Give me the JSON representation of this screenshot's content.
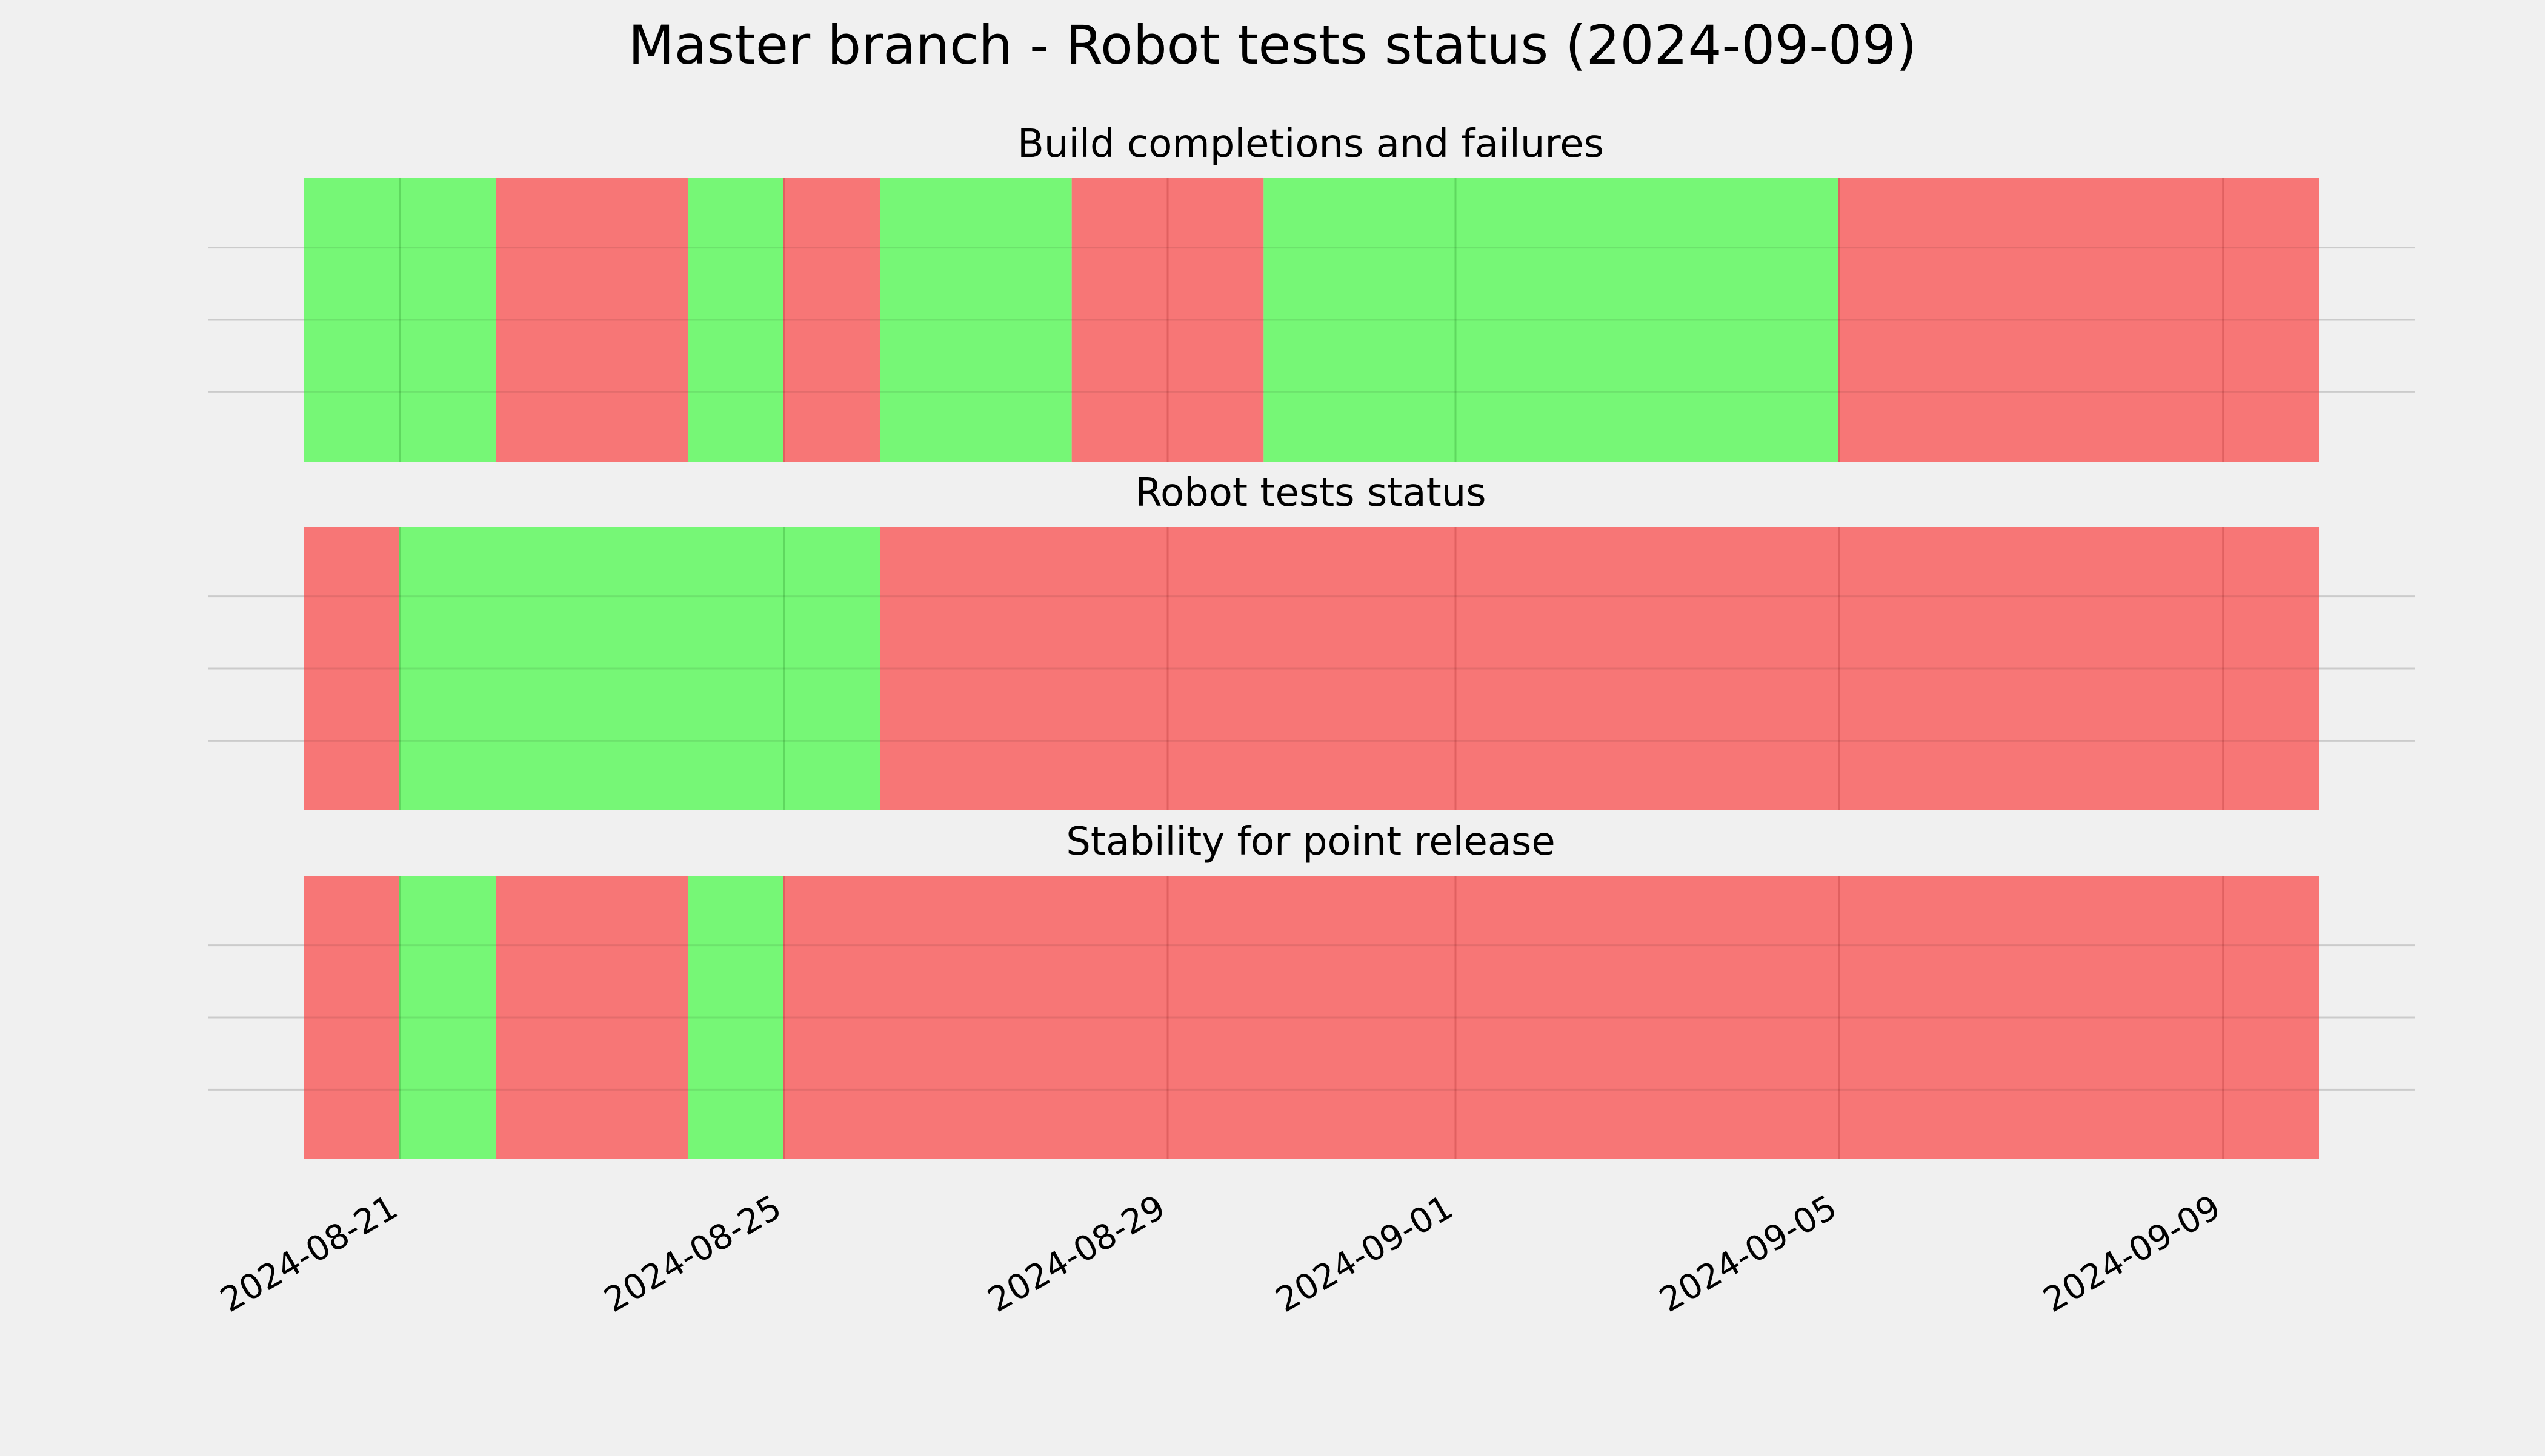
{
  "title": "Master branch - Robot tests status (2024-09-09)",
  "colors": {
    "background": "#f0f0f0",
    "pass": "#76f776",
    "fail": "#f77676",
    "pass_line": "#5fd85f",
    "fail_line": "#e06060",
    "grid": "#cbcbcb"
  },
  "chart_data": {
    "type": "broken_barh",
    "x_range": [
      "2024-08-20",
      "2024-09-10"
    ],
    "x_ticks": [
      "2024-08-21",
      "2024-08-25",
      "2024-08-29",
      "2024-09-01",
      "2024-09-05",
      "2024-09-09"
    ],
    "grid": true,
    "panels": [
      {
        "title": "Build completions and failures",
        "segments": [
          {
            "start": "2024-08-20",
            "end": "2024-08-22",
            "status": "pass"
          },
          {
            "start": "2024-08-22",
            "end": "2024-08-24",
            "status": "fail"
          },
          {
            "start": "2024-08-24",
            "end": "2024-08-25",
            "status": "pass"
          },
          {
            "start": "2024-08-25",
            "end": "2024-08-26",
            "status": "fail"
          },
          {
            "start": "2024-08-26",
            "end": "2024-08-28",
            "status": "pass"
          },
          {
            "start": "2024-08-28",
            "end": "2024-08-30",
            "status": "fail"
          },
          {
            "start": "2024-08-30",
            "end": "2024-09-05",
            "status": "pass"
          },
          {
            "start": "2024-09-05",
            "end": "2024-09-10",
            "status": "fail"
          }
        ]
      },
      {
        "title": "Robot tests status",
        "segments": [
          {
            "start": "2024-08-20",
            "end": "2024-08-21",
            "status": "fail"
          },
          {
            "start": "2024-08-21",
            "end": "2024-08-26",
            "status": "pass"
          },
          {
            "start": "2024-08-26",
            "end": "2024-09-10",
            "status": "fail"
          }
        ]
      },
      {
        "title": "Stability for point release",
        "segments": [
          {
            "start": "2024-08-20",
            "end": "2024-08-21",
            "status": "fail"
          },
          {
            "start": "2024-08-21",
            "end": "2024-08-22",
            "status": "pass"
          },
          {
            "start": "2024-08-22",
            "end": "2024-08-24",
            "status": "fail"
          },
          {
            "start": "2024-08-24",
            "end": "2024-08-25",
            "status": "pass"
          },
          {
            "start": "2024-08-25",
            "end": "2024-09-10",
            "status": "fail"
          }
        ]
      }
    ]
  }
}
